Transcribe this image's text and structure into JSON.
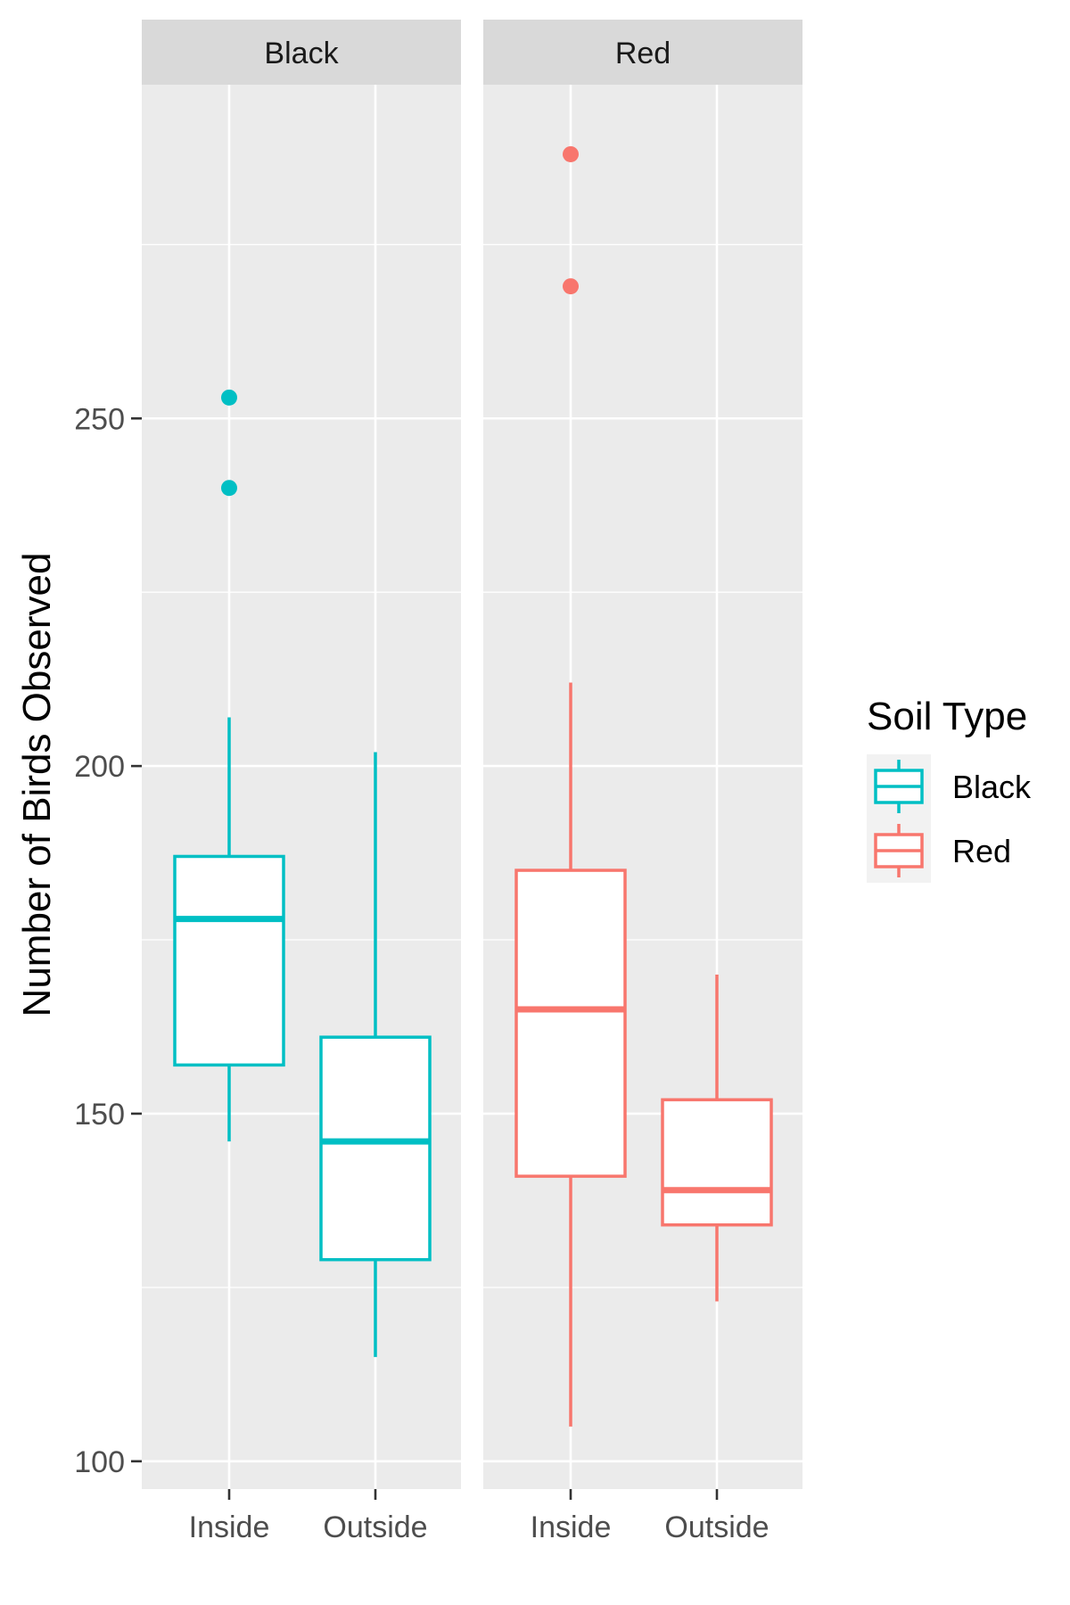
{
  "chart_data": {
    "type": "boxplot",
    "title": "",
    "xlabel": "",
    "ylabel": "Number of Birds Observed",
    "ylim": [
      96,
      298
    ],
    "yticks": [
      100,
      150,
      200,
      250
    ],
    "ytick_labels": [
      "100",
      "150",
      "200",
      "250"
    ],
    "categories": [
      "Inside",
      "Outside"
    ],
    "facets": [
      {
        "label": "Black",
        "color": "#00BFC4",
        "boxes": [
          {
            "category": "Inside",
            "whisker_low": 146,
            "q1": 157,
            "median": 178,
            "q3": 187,
            "whisker_high": 207,
            "outliers": [
              240,
              253
            ]
          },
          {
            "category": "Outside",
            "whisker_low": 115,
            "q1": 129,
            "median": 146,
            "q3": 161,
            "whisker_high": 202,
            "outliers": []
          }
        ]
      },
      {
        "label": "Red",
        "color": "#F8766D",
        "boxes": [
          {
            "category": "Inside",
            "whisker_low": 105,
            "q1": 141,
            "median": 165,
            "q3": 185,
            "whisker_high": 212,
            "outliers": [
              269,
              288
            ]
          },
          {
            "category": "Outside",
            "whisker_low": 123,
            "q1": 134,
            "median": 139,
            "q3": 152,
            "whisker_high": 170,
            "outliers": []
          }
        ]
      }
    ],
    "legend": {
      "title": "Soil Type",
      "position": "right",
      "entries": [
        {
          "label": "Black",
          "color": "#00BFC4"
        },
        {
          "label": "Red",
          "color": "#F8766D"
        }
      ]
    },
    "grid": true
  }
}
